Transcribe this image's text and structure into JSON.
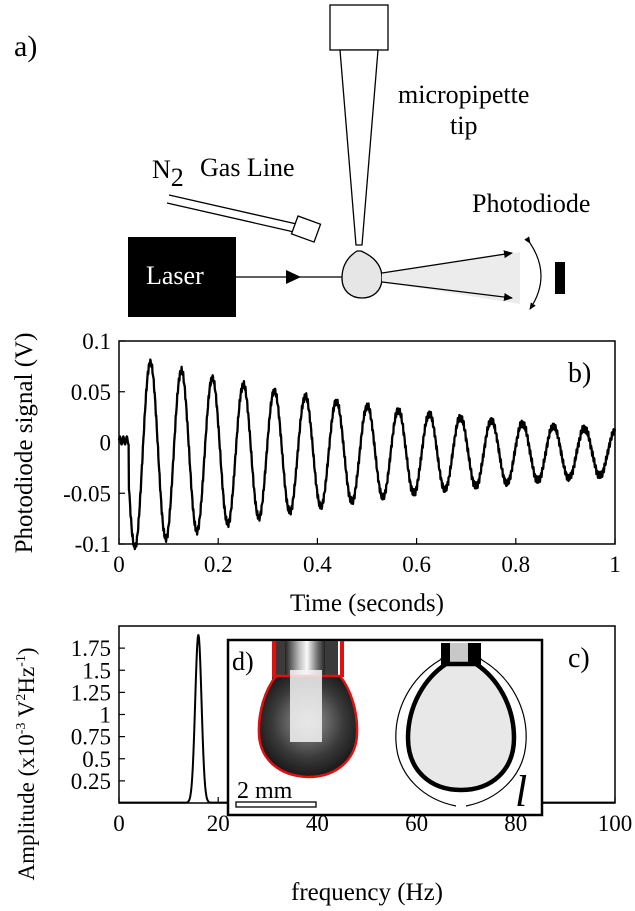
{
  "panel_a": {
    "label": "a)",
    "micropipette": "micropipette",
    "tip": "tip",
    "n2": "N",
    "n2_sub": "2",
    "gas_line": "Gas Line",
    "photodiode": "Photodiode",
    "laser": "Laser"
  },
  "panel_b": {
    "label": "b)"
  },
  "panel_c": {
    "label": "c)"
  },
  "panel_d": {
    "label": "d)",
    "scale": "2 mm",
    "length_symbol": "l"
  },
  "chart_data": [
    {
      "type": "line",
      "ylabel": "Photodiode signal (V)",
      "xlabel": "Time (seconds)",
      "xlim": [
        0,
        1
      ],
      "ylim": [
        -0.1,
        0.1
      ],
      "xticks": [
        "0",
        "0.2",
        "0.4",
        "0.6",
        "0.8",
        "1"
      ],
      "yticks": [
        "0.1",
        "0.05",
        "0",
        "-0.05",
        "-0.1"
      ],
      "signal_start_s": 0.02,
      "frequency_hz": 16,
      "initial_amplitude_v": 0.095,
      "decay_rate_per_s": 1.5,
      "offset_v": -0.01,
      "pre_signal_value_v": 0.002
    },
    {
      "type": "line",
      "ylabel_main": "Amplitude (x10",
      "ylabel_exp1": "-3",
      "ylabel_mid": " V",
      "ylabel_exp2": "2",
      "ylabel_mid2": "Hz",
      "ylabel_exp3": "-1",
      "ylabel_end": ")",
      "xlabel": "frequency (Hz)",
      "xlim": [
        0,
        100
      ],
      "ylim": [
        0,
        2.0
      ],
      "xticks": [
        "0",
        "20",
        "40",
        "60",
        "80",
        "100"
      ],
      "yticks": [
        "1.75",
        "1.5",
        "1.25",
        "1",
        "0.75",
        "0.5",
        "0.25"
      ],
      "peak_frequency_hz": 16,
      "peak_amplitude": 1.9,
      "peak_half_width_hz": 0.9
    }
  ]
}
